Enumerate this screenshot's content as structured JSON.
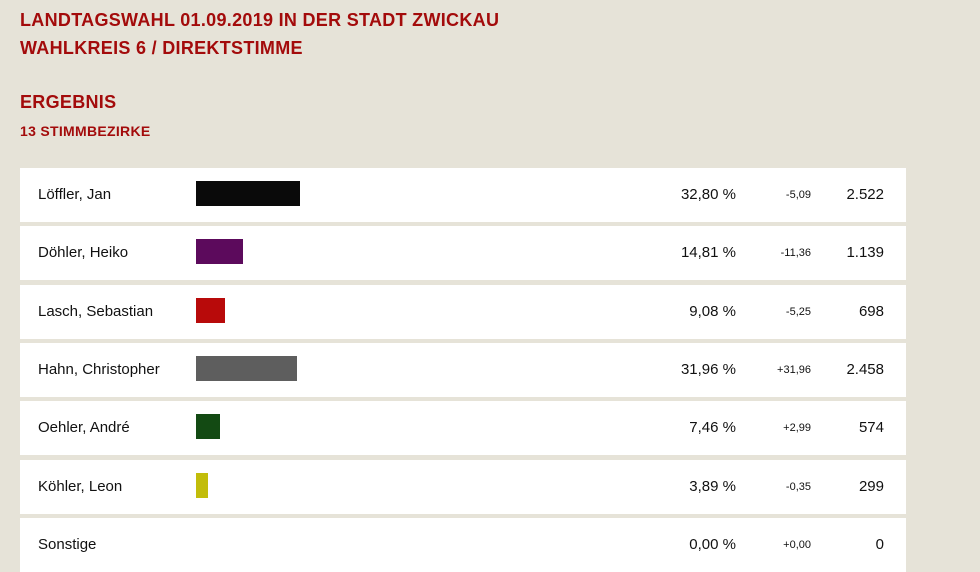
{
  "header": {
    "title": "LANDTAGSWAHL 01.09.2019 IN DER STADT ZWICKAU",
    "subtitle": "WAHLKREIS 6 / DIREKTSTIMME",
    "section": "ERGEBNIS",
    "note": "13 STIMMBEZIRKE"
  },
  "table": {
    "rows": [
      {
        "name": "Löffler, Jan",
        "color": "#0a0a0a",
        "value": 32.8,
        "value_label": "32,80 %",
        "change": "-5,09",
        "votes": "2.522"
      },
      {
        "name": "Döhler, Heiko",
        "color": "#5c0a5c",
        "value": 14.81,
        "value_label": "14,81 %",
        "change": "-11,36",
        "votes": "1.139"
      },
      {
        "name": "Lasch, Sebastian",
        "color": "#b80a0a",
        "value": 9.08,
        "value_label": "9,08 %",
        "change": "-5,25",
        "votes": "698"
      },
      {
        "name": "Hahn, Christopher",
        "color": "#5e5e5e",
        "value": 31.96,
        "value_label": "31,96 %",
        "change": "+31,96",
        "votes": "2.458"
      },
      {
        "name": "Oehler, André",
        "color": "#134a13",
        "value": 7.46,
        "value_label": "7,46 %",
        "change": "+2,99",
        "votes": "574"
      },
      {
        "name": "Köhler, Leon",
        "color": "#c2bd0a",
        "value": 3.89,
        "value_label": "3,89 %",
        "change": "-0,35",
        "votes": "299"
      },
      {
        "name": "Sonstige",
        "value": 0.0,
        "value_label": "0,00 %",
        "change": "+0,00",
        "votes": "0"
      }
    ]
  }
}
